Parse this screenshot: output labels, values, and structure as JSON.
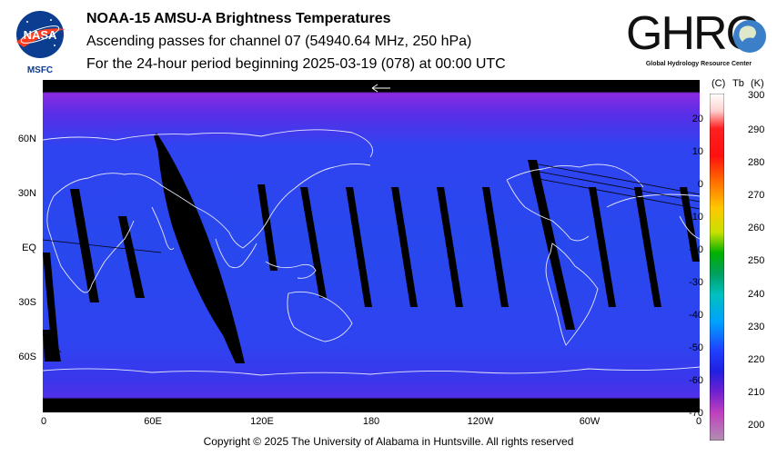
{
  "header": {
    "title": "NOAA-15 AMSU-A Brightness Temperatures",
    "subtitle": "Ascending passes for channel 07 (54940.64 MHz, 250 hPa)",
    "period": "For the 24-hour period beginning 2025-03-19 (078) at 00:00 UTC"
  },
  "logos": {
    "nasa_text": "NASA",
    "msfc_text": "MSFC",
    "ghrc_text": "GHRC",
    "ghrc_subtext": "Global Hydrology Resource Center"
  },
  "map": {
    "lat_labels": [
      "60N",
      "30N",
      "EQ",
      "30S",
      "60S"
    ],
    "lon_labels": [
      "0",
      "60E",
      "120E",
      "180",
      "120W",
      "60W",
      "0"
    ],
    "colors": {
      "background": "#2a3cf0",
      "polar": "#7a2ae0",
      "gap": "#000000",
      "coast": "#e6e6ff"
    }
  },
  "colorbar": {
    "unit_c": "(C)",
    "unit_tb": "Tb",
    "unit_k": "(K)",
    "celsius_ticks": [
      "20",
      "10",
      "0",
      "-10",
      "-20",
      "-30",
      "-40",
      "-50",
      "-60",
      "-70"
    ],
    "kelvin_ticks": [
      "300",
      "290",
      "280",
      "270",
      "260",
      "250",
      "240",
      "230",
      "220",
      "210",
      "200"
    ]
  },
  "footer": {
    "copyright": "Copyright © 2025 The University of Alabama in Huntsville.  All rights reserved"
  }
}
